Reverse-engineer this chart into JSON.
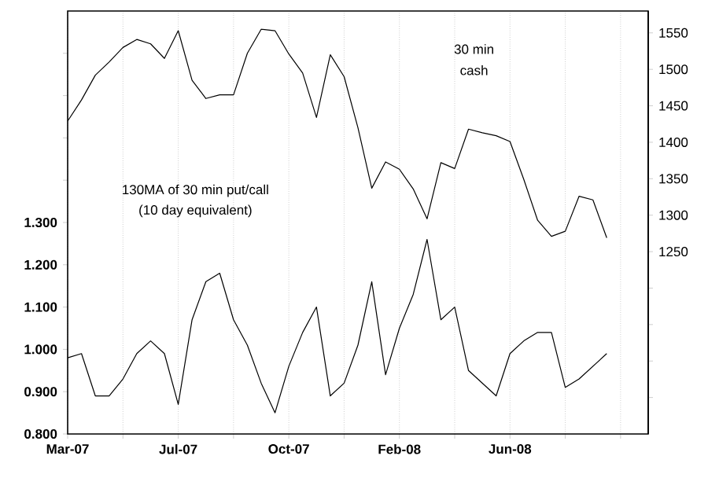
{
  "chart_data": {
    "type": "line",
    "categories": [
      "Mar-07",
      null,
      null,
      null,
      null,
      null,
      null,
      null,
      "Jul-07",
      null,
      null,
      null,
      null,
      null,
      null,
      null,
      "Oct-07",
      null,
      null,
      null,
      null,
      null,
      null,
      null,
      "Feb-08",
      null,
      null,
      null,
      null,
      null,
      null,
      null,
      "Jun-08",
      null,
      null,
      null,
      null,
      null,
      null,
      null,
      null,
      null
    ],
    "series": [
      {
        "color": "#000000",
        "axis": "y2",
        "values": [
          1429,
          1458,
          1492,
          1510,
          1530,
          1541,
          1535,
          1515,
          1553,
          1485,
          1460,
          1465,
          1465,
          1522,
          1555,
          1553,
          1521,
          1495,
          1434,
          1520,
          1490,
          1420,
          1337,
          1373,
          1363,
          1336,
          1295,
          1372,
          1364,
          1418,
          1413,
          1409,
          1401,
          1349,
          1293,
          1271,
          1278,
          1326,
          1321,
          1269,
          null,
          null
        ]
      },
      {
        "color": "#000000",
        "values": [
          0.98,
          0.99,
          0.89,
          0.89,
          0.93,
          0.99,
          1.02,
          0.99,
          0.87,
          1.07,
          1.16,
          1.18,
          1.07,
          1.01,
          0.92,
          0.85,
          0.96,
          1.04,
          1.1,
          0.89,
          0.92,
          1.01,
          1.16,
          0.94,
          1.05,
          1.13,
          1.26,
          1.07,
          1.1,
          0.95,
          0.92,
          0.89,
          0.99,
          1.02,
          1.04,
          1.04,
          0.91,
          0.93,
          0.96,
          0.99,
          null,
          null
        ]
      }
    ],
    "ylim": [
      0.8,
      1.8
    ],
    "yticks": [
      {
        "value": 0.8,
        "label": "0.800"
      },
      {
        "value": 0.9,
        "label": "0.900"
      },
      {
        "value": 1.0,
        "label": "1.000"
      },
      {
        "value": 1.1,
        "label": "1.100"
      },
      {
        "value": 1.2,
        "label": "1.200"
      },
      {
        "value": 1.3,
        "label": "1.300"
      },
      {
        "value": 1.4,
        "label": null
      },
      {
        "value": 1.5,
        "label": null
      },
      {
        "value": 1.6,
        "label": null
      },
      {
        "value": 1.7,
        "label": null
      }
    ],
    "y2lim": [
      1000,
      1580
    ],
    "y2ticks": [
      {
        "value": 1050,
        "label": null
      },
      {
        "value": 1100,
        "label": null
      },
      {
        "value": 1150,
        "label": null
      },
      {
        "value": 1200,
        "label": null
      },
      1250,
      1300,
      1350,
      1400,
      1450,
      1500,
      1550
    ],
    "grid": "x",
    "annotations": [
      "30 min",
      "cash",
      "130MA of 30 min put/call",
      "(10 day equivalent)"
    ]
  }
}
